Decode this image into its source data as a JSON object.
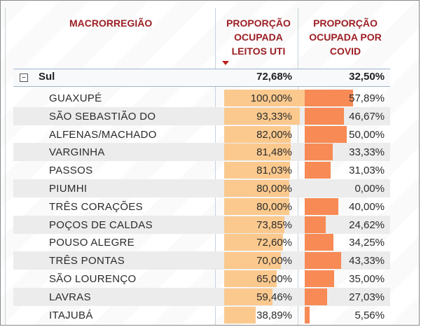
{
  "table": {
    "headers": {
      "macrorregiao": "MACRORREGIÃO",
      "uti": [
        "PROPORÇÃO",
        "OCUPADA",
        "LEITOS UTI"
      ],
      "covid": [
        "PROPORÇÃO",
        "OCUPADA POR",
        "COVID"
      ]
    },
    "sort_icon": "sort-descending-icon",
    "group": {
      "toggle_icon": "collapse-minus-icon",
      "toggle_glyph": "−",
      "name": "Sul",
      "uti": "72,68%",
      "covid": "32,50%"
    },
    "rows": [
      {
        "name": "GUAXUPÉ",
        "uti": "100,00%",
        "covid": "57,89%",
        "uti_fraction": 1.0,
        "covid_fraction": 0.5789
      },
      {
        "name": "SÃO SEBASTIÃO DO",
        "uti": "93,33%",
        "covid": "46,67%",
        "uti_fraction": 0.9333,
        "covid_fraction": 0.4667
      },
      {
        "name": "ALFENAS/MACHADO",
        "uti": "82,00%",
        "covid": "50,00%",
        "uti_fraction": 0.82,
        "covid_fraction": 0.5
      },
      {
        "name": "VARGINHA",
        "uti": "81,48%",
        "covid": "33,33%",
        "uti_fraction": 0.8148,
        "covid_fraction": 0.3333
      },
      {
        "name": "PASSOS",
        "uti": "81,03%",
        "covid": "31,03%",
        "uti_fraction": 0.8103,
        "covid_fraction": 0.3103
      },
      {
        "name": "PIUMHI",
        "uti": "80,00%",
        "covid": "0,00%",
        "uti_fraction": 0.8,
        "covid_fraction": 0.0
      },
      {
        "name": "TRÊS CORAÇÕES",
        "uti": "80,00%",
        "covid": "40,00%",
        "uti_fraction": 0.8,
        "covid_fraction": 0.4
      },
      {
        "name": "POÇOS DE CALDAS",
        "uti": "73,85%",
        "covid": "24,62%",
        "uti_fraction": 0.7385,
        "covid_fraction": 0.2462
      },
      {
        "name": "POUSO ALEGRE",
        "uti": "72,60%",
        "covid": "34,25%",
        "uti_fraction": 0.726,
        "covid_fraction": 0.3425
      },
      {
        "name": "TRÊS PONTAS",
        "uti": "70,00%",
        "covid": "43,33%",
        "uti_fraction": 0.7,
        "covid_fraction": 0.4333
      },
      {
        "name": "SÃO LOURENÇO",
        "uti": "65,00%",
        "covid": "35,00%",
        "uti_fraction": 0.65,
        "covid_fraction": 0.35
      },
      {
        "name": "LAVRAS",
        "uti": "59,46%",
        "covid": "27,03%",
        "uti_fraction": 0.5946,
        "covid_fraction": 0.2703
      },
      {
        "name": "ITAJUBÁ",
        "uti": "38,89%",
        "covid": "5,56%",
        "uti_fraction": 0.3889,
        "covid_fraction": 0.0556
      }
    ],
    "colors": {
      "header_text": "#9c1f24",
      "bar_uti": "#fbc98e",
      "bar_covid": "#f78a55",
      "row_alt": "#ececec"
    }
  }
}
